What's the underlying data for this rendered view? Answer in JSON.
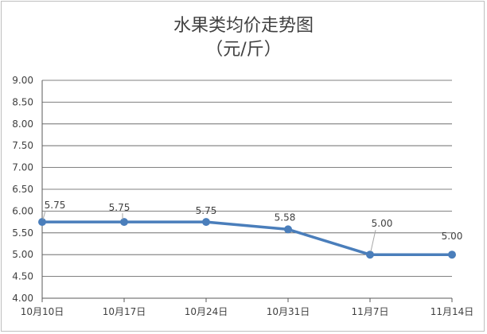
{
  "chart_data": {
    "type": "line",
    "title": "水果类均价走势图",
    "subtitle": "（元/斤）",
    "xlabel": "",
    "ylabel": "",
    "categories": [
      "10月10日",
      "10月17日",
      "10月24日",
      "10月31日",
      "11月7日",
      "11月14日"
    ],
    "series": [
      {
        "values": [
          5.75,
          5.75,
          5.75,
          5.58,
          5.0,
          5.0
        ],
        "labels": [
          "5.75",
          "5.75",
          "5.75",
          "5.58",
          "5.00",
          "5.00"
        ],
        "color": "#4a7ebb"
      }
    ],
    "ylim": [
      4.0,
      9.0
    ],
    "yticks": [
      "4.00",
      "4.50",
      "5.00",
      "5.50",
      "6.00",
      "6.50",
      "7.00",
      "7.50",
      "8.00",
      "8.50",
      "9.00"
    ],
    "grid": true,
    "legend": "none"
  }
}
